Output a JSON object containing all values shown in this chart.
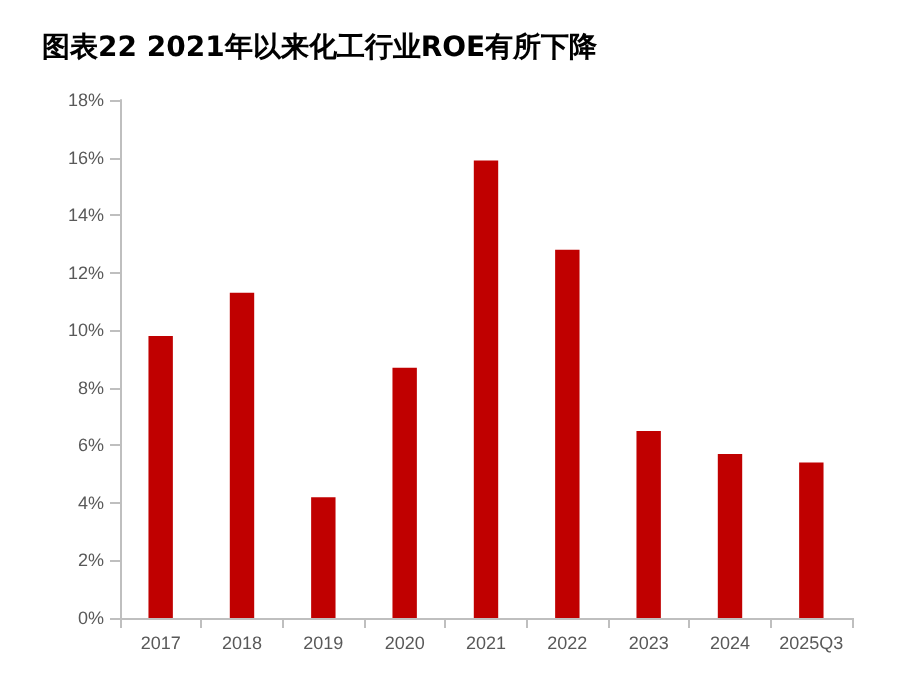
{
  "chart_data": {
    "type": "bar",
    "title": "图表22 2021年以来化工行业ROE有所下降",
    "categories": [
      "2017",
      "2018",
      "2019",
      "2020",
      "2021",
      "2022",
      "2023",
      "2024",
      "2025Q3"
    ],
    "values": [
      9.8,
      11.3,
      4.2,
      8.7,
      15.9,
      12.8,
      6.5,
      5.7,
      5.4
    ],
    "color": "#c00000",
    "ylim": [
      0,
      18
    ],
    "yticks": [
      {
        "value": 0,
        "label": "0%"
      },
      {
        "value": 2,
        "label": "2%"
      },
      {
        "value": 4,
        "label": "4%"
      },
      {
        "value": 6,
        "label": "6%"
      },
      {
        "value": 8,
        "label": "8%"
      },
      {
        "value": 10,
        "label": "10%"
      },
      {
        "value": 12,
        "label": "12%"
      },
      {
        "value": 14,
        "label": "14%"
      },
      {
        "value": 16,
        "label": "16%"
      },
      {
        "value": 18,
        "label": "18%"
      }
    ],
    "grid": false
  }
}
